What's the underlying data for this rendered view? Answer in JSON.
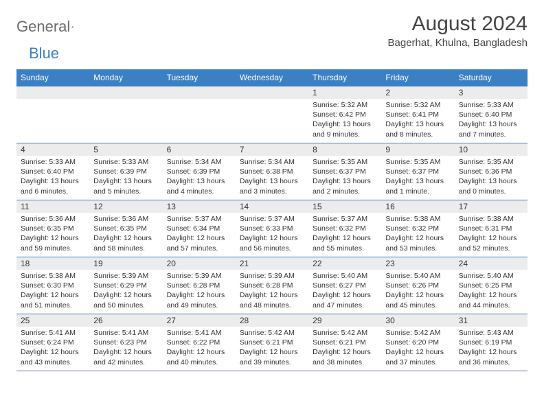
{
  "logo": {
    "word1": "General",
    "word2": "Blue"
  },
  "title": "August 2024",
  "location": "Bagerhat, Khulna, Bangladesh",
  "colors": {
    "header_bg": "#3b7fc4",
    "header_text": "#ffffff",
    "daynum_bg": "#ececec",
    "text": "#333333",
    "rule": "#3b7fc4",
    "logo_gray": "#6b6b6b",
    "logo_blue": "#3b7fc4",
    "page_bg": "#ffffff"
  },
  "font": {
    "family": "Arial",
    "title_size_pt": 22,
    "header_size_pt": 9,
    "body_size_pt": 8
  },
  "day_names": [
    "Sunday",
    "Monday",
    "Tuesday",
    "Wednesday",
    "Thursday",
    "Friday",
    "Saturday"
  ],
  "weeks": [
    [
      {
        "day": "",
        "sunrise": "",
        "sunset": "",
        "daylight": ""
      },
      {
        "day": "",
        "sunrise": "",
        "sunset": "",
        "daylight": ""
      },
      {
        "day": "",
        "sunrise": "",
        "sunset": "",
        "daylight": ""
      },
      {
        "day": "",
        "sunrise": "",
        "sunset": "",
        "daylight": ""
      },
      {
        "day": "1",
        "sunrise": "Sunrise: 5:32 AM",
        "sunset": "Sunset: 6:42 PM",
        "daylight": "Daylight: 13 hours and 9 minutes."
      },
      {
        "day": "2",
        "sunrise": "Sunrise: 5:32 AM",
        "sunset": "Sunset: 6:41 PM",
        "daylight": "Daylight: 13 hours and 8 minutes."
      },
      {
        "day": "3",
        "sunrise": "Sunrise: 5:33 AM",
        "sunset": "Sunset: 6:40 PM",
        "daylight": "Daylight: 13 hours and 7 minutes."
      }
    ],
    [
      {
        "day": "4",
        "sunrise": "Sunrise: 5:33 AM",
        "sunset": "Sunset: 6:40 PM",
        "daylight": "Daylight: 13 hours and 6 minutes."
      },
      {
        "day": "5",
        "sunrise": "Sunrise: 5:33 AM",
        "sunset": "Sunset: 6:39 PM",
        "daylight": "Daylight: 13 hours and 5 minutes."
      },
      {
        "day": "6",
        "sunrise": "Sunrise: 5:34 AM",
        "sunset": "Sunset: 6:39 PM",
        "daylight": "Daylight: 13 hours and 4 minutes."
      },
      {
        "day": "7",
        "sunrise": "Sunrise: 5:34 AM",
        "sunset": "Sunset: 6:38 PM",
        "daylight": "Daylight: 13 hours and 3 minutes."
      },
      {
        "day": "8",
        "sunrise": "Sunrise: 5:35 AM",
        "sunset": "Sunset: 6:37 PM",
        "daylight": "Daylight: 13 hours and 2 minutes."
      },
      {
        "day": "9",
        "sunrise": "Sunrise: 5:35 AM",
        "sunset": "Sunset: 6:37 PM",
        "daylight": "Daylight: 13 hours and 1 minute."
      },
      {
        "day": "10",
        "sunrise": "Sunrise: 5:35 AM",
        "sunset": "Sunset: 6:36 PM",
        "daylight": "Daylight: 13 hours and 0 minutes."
      }
    ],
    [
      {
        "day": "11",
        "sunrise": "Sunrise: 5:36 AM",
        "sunset": "Sunset: 6:35 PM",
        "daylight": "Daylight: 12 hours and 59 minutes."
      },
      {
        "day": "12",
        "sunrise": "Sunrise: 5:36 AM",
        "sunset": "Sunset: 6:35 PM",
        "daylight": "Daylight: 12 hours and 58 minutes."
      },
      {
        "day": "13",
        "sunrise": "Sunrise: 5:37 AM",
        "sunset": "Sunset: 6:34 PM",
        "daylight": "Daylight: 12 hours and 57 minutes."
      },
      {
        "day": "14",
        "sunrise": "Sunrise: 5:37 AM",
        "sunset": "Sunset: 6:33 PM",
        "daylight": "Daylight: 12 hours and 56 minutes."
      },
      {
        "day": "15",
        "sunrise": "Sunrise: 5:37 AM",
        "sunset": "Sunset: 6:32 PM",
        "daylight": "Daylight: 12 hours and 55 minutes."
      },
      {
        "day": "16",
        "sunrise": "Sunrise: 5:38 AM",
        "sunset": "Sunset: 6:32 PM",
        "daylight": "Daylight: 12 hours and 53 minutes."
      },
      {
        "day": "17",
        "sunrise": "Sunrise: 5:38 AM",
        "sunset": "Sunset: 6:31 PM",
        "daylight": "Daylight: 12 hours and 52 minutes."
      }
    ],
    [
      {
        "day": "18",
        "sunrise": "Sunrise: 5:38 AM",
        "sunset": "Sunset: 6:30 PM",
        "daylight": "Daylight: 12 hours and 51 minutes."
      },
      {
        "day": "19",
        "sunrise": "Sunrise: 5:39 AM",
        "sunset": "Sunset: 6:29 PM",
        "daylight": "Daylight: 12 hours and 50 minutes."
      },
      {
        "day": "20",
        "sunrise": "Sunrise: 5:39 AM",
        "sunset": "Sunset: 6:28 PM",
        "daylight": "Daylight: 12 hours and 49 minutes."
      },
      {
        "day": "21",
        "sunrise": "Sunrise: 5:39 AM",
        "sunset": "Sunset: 6:28 PM",
        "daylight": "Daylight: 12 hours and 48 minutes."
      },
      {
        "day": "22",
        "sunrise": "Sunrise: 5:40 AM",
        "sunset": "Sunset: 6:27 PM",
        "daylight": "Daylight: 12 hours and 47 minutes."
      },
      {
        "day": "23",
        "sunrise": "Sunrise: 5:40 AM",
        "sunset": "Sunset: 6:26 PM",
        "daylight": "Daylight: 12 hours and 45 minutes."
      },
      {
        "day": "24",
        "sunrise": "Sunrise: 5:40 AM",
        "sunset": "Sunset: 6:25 PM",
        "daylight": "Daylight: 12 hours and 44 minutes."
      }
    ],
    [
      {
        "day": "25",
        "sunrise": "Sunrise: 5:41 AM",
        "sunset": "Sunset: 6:24 PM",
        "daylight": "Daylight: 12 hours and 43 minutes."
      },
      {
        "day": "26",
        "sunrise": "Sunrise: 5:41 AM",
        "sunset": "Sunset: 6:23 PM",
        "daylight": "Daylight: 12 hours and 42 minutes."
      },
      {
        "day": "27",
        "sunrise": "Sunrise: 5:41 AM",
        "sunset": "Sunset: 6:22 PM",
        "daylight": "Daylight: 12 hours and 40 minutes."
      },
      {
        "day": "28",
        "sunrise": "Sunrise: 5:42 AM",
        "sunset": "Sunset: 6:21 PM",
        "daylight": "Daylight: 12 hours and 39 minutes."
      },
      {
        "day": "29",
        "sunrise": "Sunrise: 5:42 AM",
        "sunset": "Sunset: 6:21 PM",
        "daylight": "Daylight: 12 hours and 38 minutes."
      },
      {
        "day": "30",
        "sunrise": "Sunrise: 5:42 AM",
        "sunset": "Sunset: 6:20 PM",
        "daylight": "Daylight: 12 hours and 37 minutes."
      },
      {
        "day": "31",
        "sunrise": "Sunrise: 5:43 AM",
        "sunset": "Sunset: 6:19 PM",
        "daylight": "Daylight: 12 hours and 36 minutes."
      }
    ]
  ]
}
